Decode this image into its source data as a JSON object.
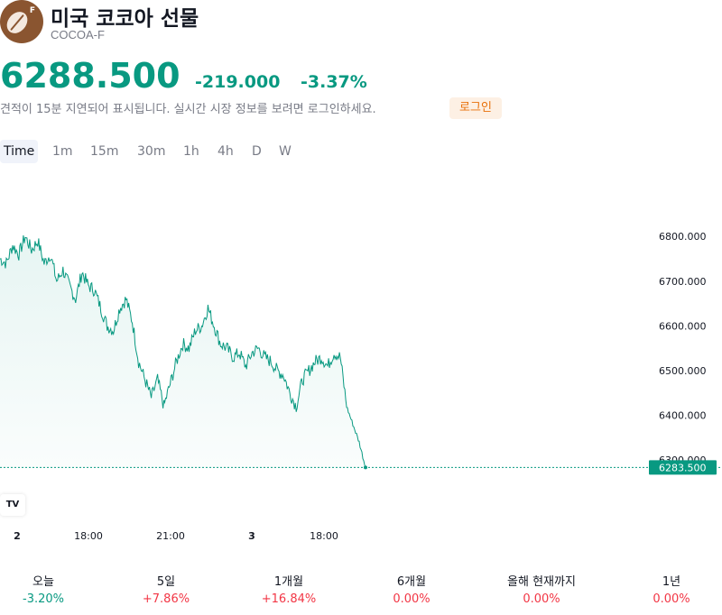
{
  "header": {
    "title": "미국 코코아 선물",
    "symbol": "COCOA-F",
    "logo_letter": "F"
  },
  "quote": {
    "price": "6288.500",
    "change": "-219.000",
    "change_pct": "-3.37%",
    "notice": "견적이 15분 지연되어 표시됩니다. 실시간 시장 정보를 보려면 로그인하세요.",
    "login_label": "로그인"
  },
  "tabs": [
    "Time",
    "1m",
    "15m",
    "30m",
    "1h",
    "4h",
    "D",
    "W"
  ],
  "active_tab": "Time",
  "chart_data": {
    "type": "area",
    "y_ticks": [
      "6800.000",
      "6700.000",
      "6600.000",
      "6500.000",
      "6400.000",
      "6300.000"
    ],
    "x_ticks": [
      {
        "label": "2",
        "bold": true
      },
      {
        "label": "18:00",
        "bold": false
      },
      {
        "label": "21:00",
        "bold": false
      },
      {
        "label": "3",
        "bold": true
      },
      {
        "label": "18:00",
        "bold": false
      }
    ],
    "last_price_label": "6283.500",
    "last_price": 6283.5,
    "ylim": [
      6240,
      6875
    ],
    "line_color": "#089981",
    "values": [
      6750,
      6740,
      6780,
      6760,
      6800,
      6770,
      6790,
      6740,
      6760,
      6700,
      6725,
      6690,
      6660,
      6720,
      6690,
      6680,
      6640,
      6600,
      6590,
      6640,
      6660,
      6610,
      6520,
      6480,
      6440,
      6480,
      6420,
      6470,
      6520,
      6560,
      6550,
      6590,
      6600,
      6640,
      6600,
      6560,
      6550,
      6530,
      6540,
      6510,
      6540,
      6550,
      6530,
      6520,
      6500,
      6490,
      6450,
      6420,
      6480,
      6500,
      6520,
      6530,
      6510,
      6540,
      6530,
      6420,
      6380,
      6340,
      6283.5
    ]
  },
  "periods": [
    {
      "label": "오늘",
      "value": "-3.20%",
      "tone": "green"
    },
    {
      "label": "5일",
      "value": "+7.86%",
      "tone": "red"
    },
    {
      "label": "1개월",
      "value": "+16.84%",
      "tone": "red"
    },
    {
      "label": "6개월",
      "value": "0.00%",
      "tone": "red"
    },
    {
      "label": "올해 현재까지",
      "value": "0.00%",
      "tone": "red"
    },
    {
      "label": "1년",
      "value": "0.00%",
      "tone": "red"
    }
  ],
  "colors": {
    "green": "#089981",
    "red": "#f23645",
    "accent_orange": "#e8700a"
  }
}
